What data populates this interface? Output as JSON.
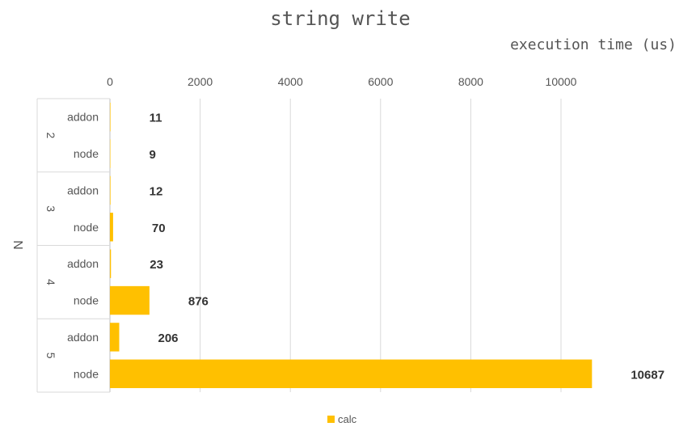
{
  "chart_data": {
    "type": "bar",
    "orientation": "horizontal",
    "title": "string write",
    "xlabel": "execution time (us)",
    "ylabel": "N",
    "xlim": [
      0,
      10687
    ],
    "xticks": [
      0,
      2000,
      4000,
      6000,
      8000,
      10000
    ],
    "grid": true,
    "legend_position": "bottom",
    "color": "#FFC000",
    "groups": [
      {
        "label": "2",
        "rows": [
          {
            "label": "addon",
            "value": 11
          },
          {
            "label": "node",
            "value": 9
          }
        ]
      },
      {
        "label": "3",
        "rows": [
          {
            "label": "addon",
            "value": 12
          },
          {
            "label": "node",
            "value": 70
          }
        ]
      },
      {
        "label": "4",
        "rows": [
          {
            "label": "addon",
            "value": 23
          },
          {
            "label": "node",
            "value": 876
          }
        ]
      },
      {
        "label": "5",
        "rows": [
          {
            "label": "addon",
            "value": 206
          },
          {
            "label": "node",
            "value": 10687
          }
        ]
      }
    ],
    "series": [
      {
        "name": "calc"
      }
    ]
  }
}
